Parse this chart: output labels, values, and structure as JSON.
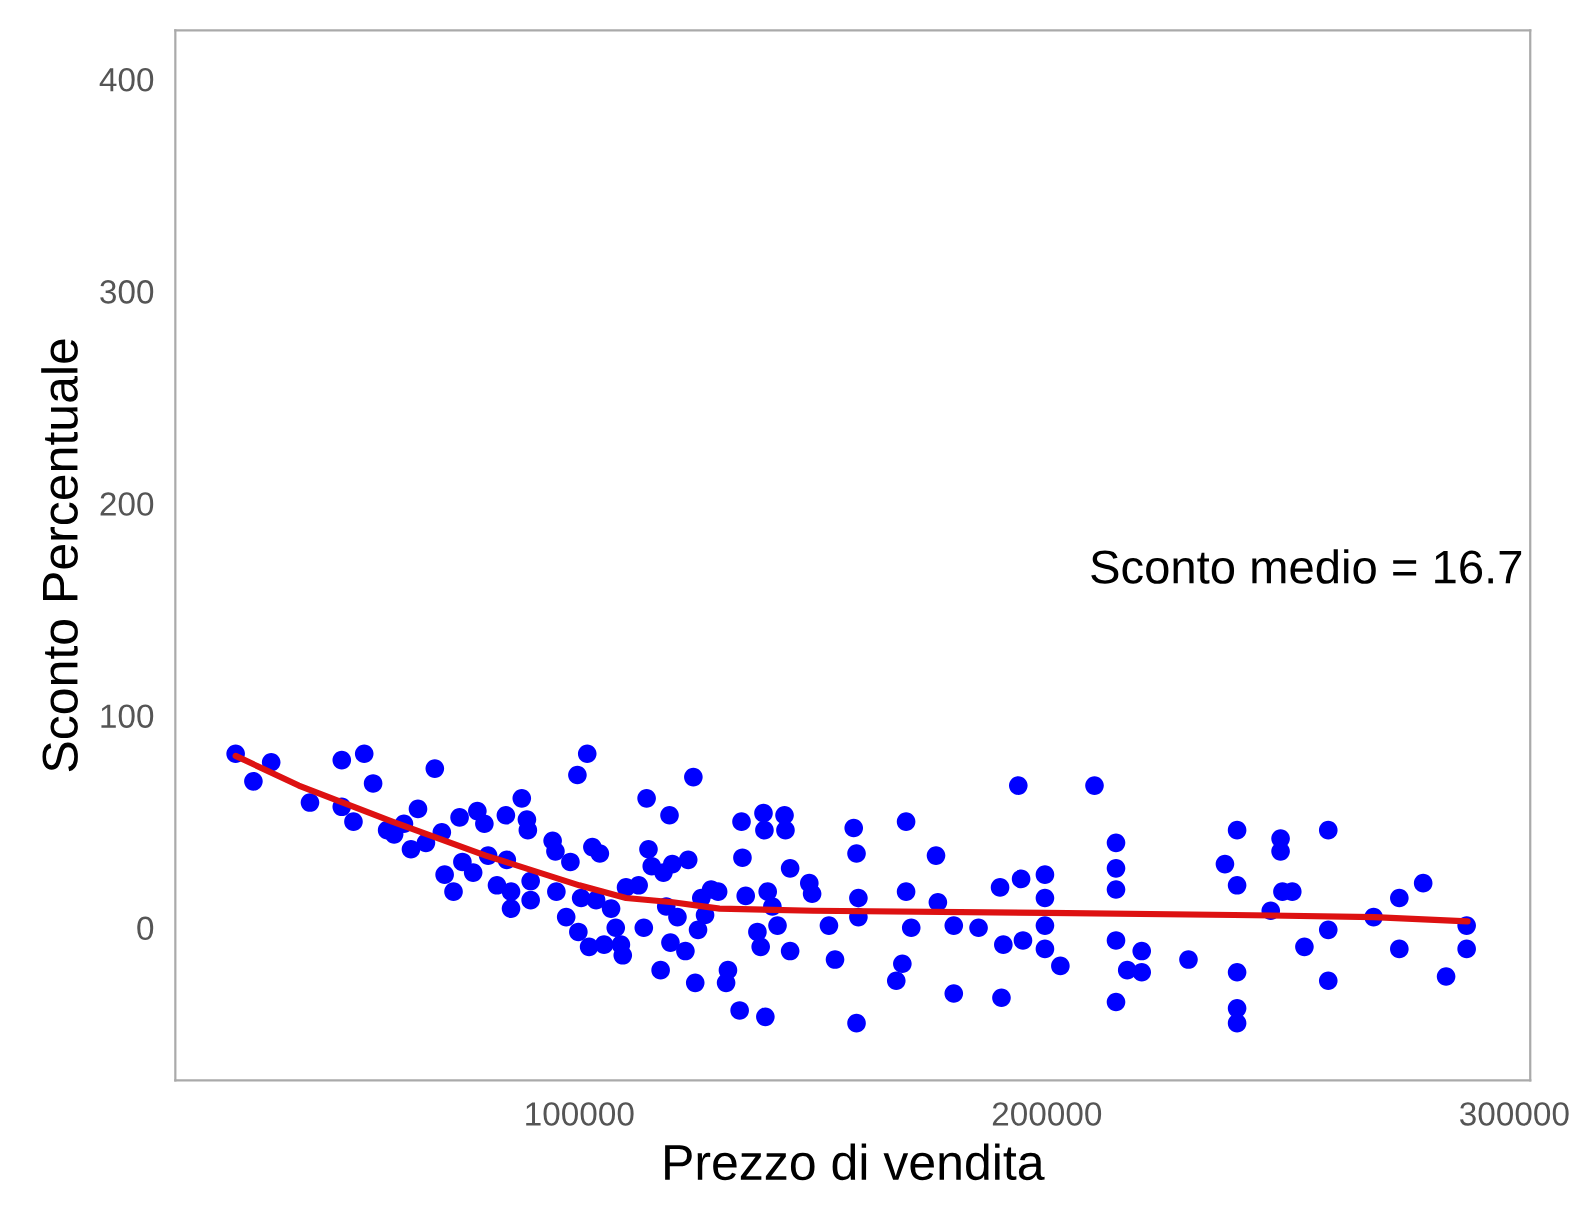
{
  "chart_data": {
    "type": "scatter",
    "xlabel": "Prezzo di vendita",
    "ylabel": "Sconto Percentuale",
    "annotations": [
      "Sconto medio = 16.7"
    ],
    "xlim": [
      13600,
      303400
    ],
    "ylim": [
      -72,
      423
    ],
    "xticks": [
      100000,
      200000,
      300000
    ],
    "yticks": [
      0,
      100,
      200,
      300,
      400
    ],
    "grid": false,
    "legend": false,
    "series": [
      {
        "marker": "circle",
        "color": "#0000ff",
        "x": [
          26500,
          30300,
          34100,
          42400,
          49200,
          49200,
          51700,
          54000,
          55900,
          58900,
          60400,
          62500,
          64000,
          65500,
          67200,
          69100,
          70600,
          71200,
          73100,
          74400,
          75000,
          77300,
          78200,
          79700,
          80500,
          82400,
          84300,
          84500,
          85400,
          85400,
          87700,
          88800,
          89000,
          89600,
          89600,
          94300,
          94900,
          95100,
          97200,
          98100,
          99600,
          99800,
          100400,
          101700,
          102100,
          102800,
          103600,
          104400,
          105300,
          106800,
          107800,
          108900,
          109300,
          110000,
          112700,
          113800,
          114400,
          114800,
          115500,
          117400,
          118000,
          118600,
          119300,
          119500,
          119900,
          121000,
          122700,
          123300,
          124400,
          124800,
          125400,
          126100,
          126900,
          128200,
          129700,
          131400,
          131800,
          134300,
          134700,
          134900,
          135600,
          138100,
          138800,
          139400,
          139600,
          139800,
          140300,
          141300,
          142400,
          143900,
          144100,
          145100,
          145100,
          149200,
          149800,
          153400,
          154700,
          158700,
          159300,
          159700,
          159700,
          159300,
          167800,
          169100,
          169900,
          169900,
          171000,
          176300,
          176700,
          180100,
          180100,
          185400,
          190000,
          190300,
          190700,
          193900,
          194500,
          194900,
          199600,
          199600,
          199600,
          199600,
          202900,
          210200,
          214800,
          214800,
          214800,
          214800,
          214800,
          217200,
          220300,
          220300,
          230300,
          238100,
          240700,
          240700,
          240700,
          240700,
          240700,
          247900,
          250000,
          250000,
          250400,
          252500,
          255100,
          260200,
          260200,
          260200,
          269900,
          275400,
          275400,
          280500,
          285400,
          289800,
          289800
        ],
        "values": [
          82,
          69,
          78,
          59,
          79,
          57,
          50,
          82,
          68,
          46,
          44,
          49,
          37,
          56,
          40,
          75,
          45,
          25,
          17,
          52,
          31,
          26,
          55,
          49,
          34,
          20,
          53,
          32,
          17,
          9,
          61,
          51,
          46,
          13,
          22,
          41,
          36,
          17,
          5,
          31,
          72,
          -2,
          14,
          82,
          -9,
          38,
          13,
          35,
          -8,
          9,
          0,
          -8,
          -13,
          19,
          20,
          0,
          61,
          37,
          29,
          -20,
          26,
          10,
          53,
          -7,
          30,
          5,
          -11,
          32,
          71,
          -26,
          -1,
          14,
          6,
          18,
          17,
          -26,
          -20,
          -39,
          50,
          33,
          15,
          -2,
          -9,
          54,
          46,
          -42,
          17,
          10,
          1,
          53,
          46,
          28,
          -11,
          21,
          16,
          1,
          -15,
          47,
          35,
          5,
          14,
          -45,
          -25,
          -17,
          50,
          17,
          0,
          34,
          12,
          1,
          -31,
          0,
          19,
          -33,
          -8,
          67,
          23,
          -6,
          25,
          14,
          1,
          -10,
          -18,
          67,
          40,
          28,
          18,
          -6,
          -35,
          -20,
          -11,
          -21,
          -15,
          30,
          46,
          20,
          -21,
          -38,
          -45,
          8,
          42,
          36,
          17,
          17,
          -9,
          46,
          -1,
          -25,
          5,
          14,
          -10,
          21,
          -23,
          1,
          -10
        ]
      },
      {
        "type": "line",
        "color": "#dd1111",
        "x": [
          26500,
          40000,
          60000,
          80000,
          100000,
          110000,
          120000,
          130000,
          150000,
          200000,
          240000,
          270000,
          290000
        ],
        "values": [
          81,
          67,
          50,
          34,
          20,
          14,
          12,
          9,
          8,
          7,
          6,
          5,
          3
        ]
      }
    ]
  }
}
